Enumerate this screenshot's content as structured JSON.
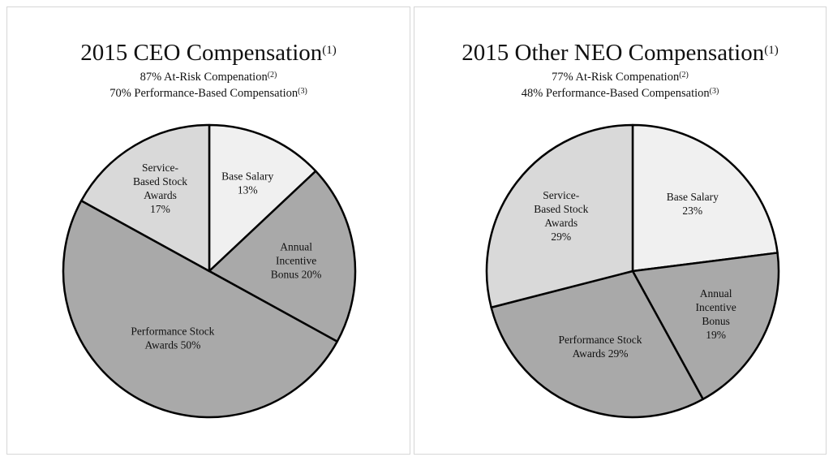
{
  "chart_data": [
    {
      "type": "pie",
      "title": "2015 CEO Compensation",
      "title_note": "(1)",
      "subtitles": [
        {
          "text": "87% At-Risk Compenation",
          "note": "(2)"
        },
        {
          "text": "70% Performance-Based Compensation",
          "note": "(3)"
        }
      ],
      "slices": [
        {
          "label_lines": [
            "Base Salary",
            "13%"
          ],
          "value": 13,
          "color": "#f0f0f0"
        },
        {
          "label_lines": [
            "Annual",
            "Incentive",
            "Bonus 20%"
          ],
          "value": 20,
          "color": "#a9a9a9"
        },
        {
          "label_lines": [
            "Performance Stock",
            "Awards 50%"
          ],
          "value": 50,
          "color": "#a9a9a9"
        },
        {
          "label_lines": [
            "Service-",
            "Based Stock",
            "Awards",
            "17%"
          ],
          "value": 17,
          "color": "#d9d9d9"
        }
      ]
    },
    {
      "type": "pie",
      "title": "2015 Other NEO Compensation",
      "title_note": "(1)",
      "subtitles": [
        {
          "text": "77% At-Risk Compenation",
          "note": "(2)"
        },
        {
          "text": "48% Performance-Based Compensation",
          "note": "(3)"
        }
      ],
      "slices": [
        {
          "label_lines": [
            "Base Salary",
            "23%"
          ],
          "value": 23,
          "color": "#f0f0f0"
        },
        {
          "label_lines": [
            "Annual",
            "Incentive",
            "Bonus",
            "19%"
          ],
          "value": 19,
          "color": "#a9a9a9"
        },
        {
          "label_lines": [
            "Performance Stock",
            "Awards 29%"
          ],
          "value": 29,
          "color": "#a9a9a9"
        },
        {
          "label_lines": [
            "Service-",
            "Based Stock",
            "Awards",
            "29%"
          ],
          "value": 29,
          "color": "#d9d9d9"
        }
      ]
    }
  ]
}
